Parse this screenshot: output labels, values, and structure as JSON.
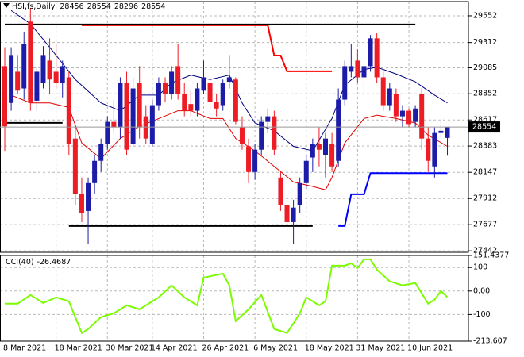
{
  "chart_data": [
    {
      "type": "candlestick",
      "header": "HSI,fs,Daily",
      "categories": [
        "8 Mar 2021",
        null,
        null,
        null,
        null,
        null,
        null,
        null,
        "18 Mar 2021",
        null,
        null,
        null,
        null,
        null,
        null,
        null,
        "30 Mar 2021",
        null,
        null,
        null,
        null,
        null,
        null,
        "14 Apr 2021",
        null,
        null,
        null,
        null,
        null,
        null,
        null,
        "26 Apr 2021",
        null,
        null,
        null,
        null,
        null,
        null,
        null,
        "6 May 2021",
        null,
        null,
        null,
        null,
        null,
        null,
        null,
        "18 May 2021",
        null,
        null,
        null,
        null,
        null,
        null,
        null,
        "31 May 2021",
        null,
        null,
        null,
        null,
        null,
        null,
        null,
        "10 Jun 2021",
        null,
        null,
        null,
        null,
        null,
        null
      ],
      "open": [
        29100,
        28770,
        29050,
        28900,
        29500,
        28790,
        28950,
        29150,
        29050,
        28950,
        29000,
        28450,
        27950,
        27800,
        28050,
        28250,
        28400,
        28600,
        28550,
        28950,
        28400,
        28950,
        28650,
        28400,
        28750,
        28950,
        28850,
        29100,
        28850,
        28760,
        28700,
        28880,
        28950,
        28780,
        28750,
        28960,
        28980,
        28550,
        28380,
        28150,
        28350,
        28600,
        28650,
        28100,
        27850,
        27700,
        27850,
        28050,
        28280,
        28400,
        28300,
        28400,
        28250,
        28800,
        29050,
        29150,
        29000,
        29100,
        29350,
        29000,
        28750,
        28850,
        28650,
        28700,
        28600,
        28850,
        28450,
        28200,
        28500,
        28456
      ],
      "high": [
        29270,
        29270,
        29200,
        29410,
        29620,
        29100,
        29280,
        29350,
        29300,
        29150,
        29050,
        28550,
        28100,
        28100,
        28300,
        28450,
        28650,
        28800,
        29000,
        29050,
        29000,
        29100,
        28750,
        28800,
        29000,
        29000,
        29100,
        29300,
        28950,
        28880,
        28950,
        29150,
        29000,
        28850,
        28980,
        29200,
        29000,
        28650,
        28450,
        28400,
        28650,
        28720,
        28700,
        28150,
        27950,
        27900,
        28100,
        28300,
        28450,
        28550,
        28500,
        28500,
        28900,
        29150,
        29300,
        29250,
        29150,
        29380,
        29400,
        29050,
        28950,
        28900,
        28750,
        28720,
        28750,
        28900,
        28550,
        28550,
        28600,
        28554
      ],
      "low": [
        28340,
        28700,
        28850,
        28800,
        28700,
        28700,
        28900,
        28850,
        28900,
        28820,
        28300,
        27850,
        27700,
        27500,
        27950,
        28150,
        28350,
        28500,
        28450,
        28300,
        28380,
        28450,
        28400,
        28380,
        28700,
        28780,
        28800,
        28800,
        28650,
        28650,
        28650,
        28850,
        28700,
        28650,
        28700,
        28900,
        28580,
        28350,
        28050,
        28080,
        28300,
        28500,
        28300,
        27800,
        27600,
        27500,
        27780,
        28000,
        28150,
        28200,
        28100,
        28150,
        28200,
        28750,
        29000,
        28950,
        28850,
        29050,
        28950,
        28700,
        28700,
        28600,
        28550,
        28550,
        28550,
        28350,
        28150,
        28100,
        28450,
        28296
      ],
      "close": [
        28560,
        29200,
        28880,
        29300,
        28770,
        29050,
        29200,
        28980,
        28950,
        29100,
        28400,
        27950,
        27780,
        28050,
        28250,
        28400,
        28600,
        28550,
        28950,
        28350,
        28900,
        28550,
        28450,
        28750,
        28950,
        28850,
        29050,
        28850,
        28700,
        28700,
        28900,
        29000,
        28780,
        28720,
        28950,
        29000,
        28600,
        28400,
        28150,
        28350,
        28600,
        28650,
        28350,
        27850,
        27700,
        27830,
        28050,
        28250,
        28400,
        28350,
        28450,
        28200,
        28800,
        29100,
        29100,
        29000,
        29100,
        29350,
        29000,
        28750,
        28900,
        28650,
        28700,
        28580,
        28720,
        28450,
        28250,
        28500,
        28520,
        28554
      ],
      "up_color": "#1c1ca8",
      "down_color": "#ee1c24",
      "lines": [
        {
          "color": "#000080",
          "x": [
            1,
            4,
            7,
            11,
            15,
            18,
            21,
            24,
            26,
            29,
            32,
            35,
            37,
            39,
            42,
            45,
            48,
            51,
            53,
            56,
            58,
            61,
            64,
            67,
            69
          ],
          "values": [
            29600,
            29480,
            29270,
            28980,
            28770,
            28700,
            28840,
            28840,
            28950,
            29020,
            28980,
            29020,
            28770,
            28590,
            28520,
            28380,
            28340,
            28630,
            28930,
            29070,
            29090,
            29030,
            28960,
            28840,
            28770
          ]
        },
        {
          "color": "#e00000",
          "x": [
            1,
            4,
            7,
            10,
            12,
            15,
            18,
            21,
            24,
            27,
            29,
            32,
            34,
            36,
            39,
            42,
            45,
            48,
            50,
            51,
            53,
            56,
            58,
            61,
            64,
            66,
            69
          ],
          "values": [
            28840,
            28770,
            28770,
            28730,
            28410,
            28270,
            28450,
            28560,
            28630,
            28700,
            28700,
            28630,
            28630,
            28450,
            28340,
            28200,
            28060,
            28020,
            27990,
            28100,
            28410,
            28630,
            28660,
            28630,
            28590,
            28480,
            28380
          ]
        },
        {
          "color": "#ff0000",
          "x": [
            12,
            41,
            42,
            43,
            44,
            51
          ],
          "values": [
            29467,
            29467,
            29196,
            29196,
            29054,
            29054
          ]
        },
        {
          "color": "#0000ff",
          "x": [
            52,
            53,
            54,
            56,
            57,
            69
          ],
          "values": [
            27665,
            27665,
            27950,
            27950,
            28140,
            28140
          ]
        },
        {
          "color": "#000000",
          "x": [
            0,
            64
          ],
          "values": [
            29474,
            29474
          ]
        },
        {
          "color": "#000000",
          "x": [
            0,
            9
          ],
          "values": [
            28591,
            28591
          ]
        },
        {
          "color": "#000000",
          "x": [
            10,
            48
          ],
          "values": [
            27665,
            27665
          ]
        }
      ],
      "ylim": [
        27429,
        29680
      ],
      "yticks": [
        29552,
        29312,
        29085,
        28852,
        28617,
        28383,
        28147,
        27912,
        27677,
        27442
      ],
      "grid": true
    },
    {
      "type": "line",
      "title": "CCI(40)",
      "series": [
        {
          "color": "#7cfc00",
          "x": [
            0,
            2,
            4,
            6,
            8,
            10,
            12,
            13,
            15,
            17,
            19,
            21,
            24,
            26,
            28,
            30,
            31,
            34,
            35,
            36,
            38,
            40,
            42,
            44,
            46,
            47,
            49,
            50,
            51,
            53,
            54,
            55,
            56,
            57,
            58,
            60,
            62,
            64,
            66,
            67,
            68,
            69
          ],
          "values": [
            -54,
            -54,
            -17,
            -51,
            -27,
            -44,
            -179,
            -162,
            -111,
            -95,
            -61,
            -78,
            -27,
            24,
            -27,
            -61,
            57,
            74,
            24,
            -128,
            -78,
            -17,
            -162,
            -179,
            -95,
            -27,
            -61,
            -44,
            108,
            108,
            118,
            98,
            135,
            135,
            91,
            41,
            24,
            34,
            -54,
            -37,
            0,
            -26.4687
          ]
        }
      ],
      "ylim": [
        -213.607,
        151.4377
      ],
      "yticks": [
        151.4377,
        100,
        {
          "value": 0,
          "label": "0.00"
        },
        -100,
        -213.607
      ],
      "grid": true
    }
  ]
}
